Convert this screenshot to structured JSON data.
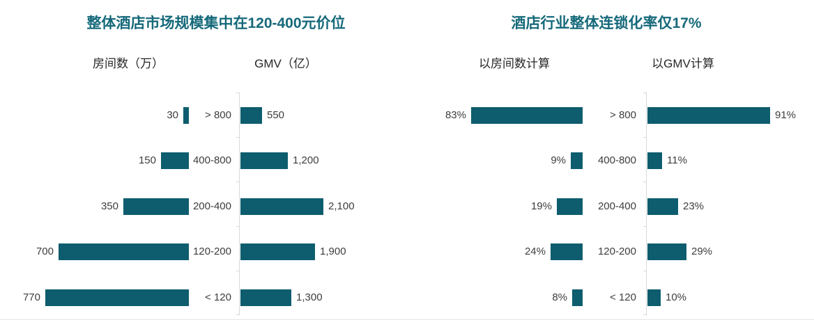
{
  "colors": {
    "bar": "#0d5d6e",
    "title": "#15697a",
    "label": "#3d3d3d",
    "axis_line": "#d8d8d8"
  },
  "panel1": {
    "title": "整体酒店市场规模集中在120-400元价位",
    "left_header": "房间数（万）",
    "right_header": "GMV（亿）",
    "categories": [
      "> 800",
      "400-800",
      "200-400",
      "120-200",
      "< 120"
    ],
    "rooms": {
      "values": [
        30,
        150,
        350,
        700,
        770
      ],
      "labels": [
        "30",
        "150",
        "350",
        "700",
        "770"
      ]
    },
    "gmv": {
      "values": [
        550,
        1200,
        2100,
        1900,
        1300
      ],
      "labels": [
        "550",
        "1,200",
        "2,100",
        "1,900",
        "1,300"
      ]
    }
  },
  "panel2": {
    "title": "酒店行业整体连锁化率仅17%",
    "left_header": "以房间数计算",
    "right_header": "以GMV计算",
    "categories": [
      "> 800",
      "400-800",
      "200-400",
      "120-200",
      "< 120"
    ],
    "rooms": {
      "values": [
        83,
        9,
        19,
        24,
        8
      ],
      "labels": [
        "83%",
        "9%",
        "19%",
        "24%",
        "8%"
      ]
    },
    "gmv": {
      "values": [
        91,
        11,
        23,
        29,
        10
      ],
      "labels": [
        "91%",
        "11%",
        "23%",
        "29%",
        "10%"
      ]
    }
  },
  "chart_data": [
    {
      "type": "bar",
      "orientation": "horizontal-butterfly",
      "title": "整体酒店市场规模集中在120-400元价位",
      "categories": [
        "> 800",
        "400-800",
        "200-400",
        "120-200",
        "< 120"
      ],
      "series": [
        {
          "name": "房间数（万）",
          "direction": "left",
          "values": [
            30,
            150,
            350,
            700,
            770
          ]
        },
        {
          "name": "GMV（亿）",
          "direction": "right",
          "values": [
            550,
            1200,
            2100,
            1900,
            1300
          ]
        }
      ],
      "value_labels": true,
      "grid": false,
      "bar_color": "#0d5d6e"
    },
    {
      "type": "bar",
      "orientation": "horizontal-butterfly",
      "title": "酒店行业整体连锁化率仅17%",
      "categories": [
        "> 800",
        "400-800",
        "200-400",
        "120-200",
        "< 120"
      ],
      "series": [
        {
          "name": "以房间数计算",
          "unit": "%",
          "direction": "left",
          "values": [
            83,
            9,
            19,
            24,
            8
          ]
        },
        {
          "name": "以GMV计算",
          "unit": "%",
          "direction": "right",
          "values": [
            91,
            11,
            23,
            29,
            10
          ]
        }
      ],
      "value_labels": true,
      "grid": false,
      "bar_color": "#0d5d6e"
    }
  ]
}
